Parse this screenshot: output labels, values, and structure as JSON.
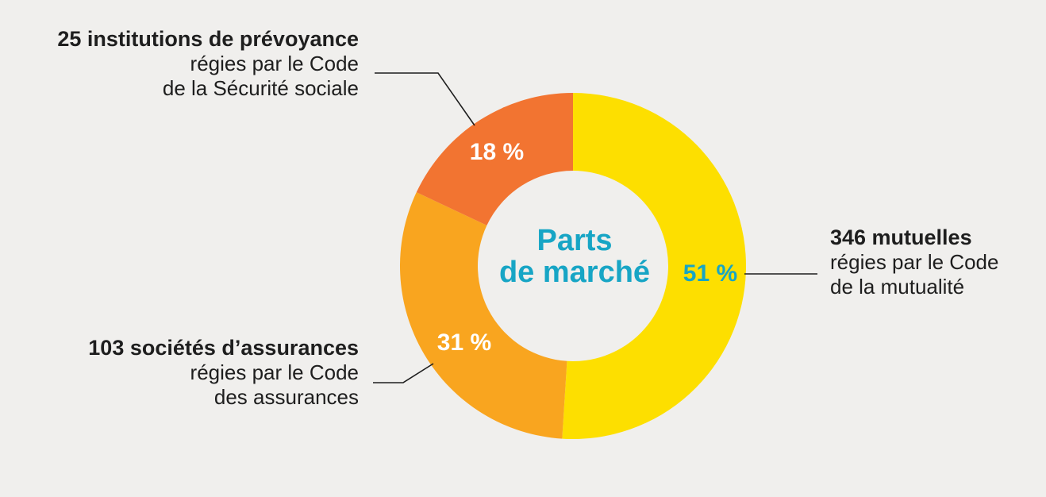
{
  "chart_data": {
    "type": "pie",
    "donut": true,
    "center_title": [
      "Parts",
      "de marché"
    ],
    "start_angle_deg": 0,
    "slices": [
      {
        "value": 51,
        "value_label": "51 %",
        "color": "#fddf00",
        "label_color": "#17a5c5",
        "label_bold": "346 mutuelles",
        "label_lines": [
          "régies par le Code",
          "de la mutualité"
        ]
      },
      {
        "value": 31,
        "value_label": "31 %",
        "color": "#f9a51f",
        "label_color": "#ffffff",
        "label_bold": "103 sociétés d’assurances",
        "label_lines": [
          "régies par le Code",
          "des assurances"
        ]
      },
      {
        "value": 18,
        "value_label": "18 %",
        "color": "#f27431",
        "label_color": "#ffffff",
        "label_bold": "25 institutions de prévoyance",
        "label_lines": [
          "régies par le Code",
          "de la Sécurité sociale"
        ]
      }
    ]
  },
  "colors": {
    "background": "#f0efed",
    "center_text": "#17a5c5",
    "leader_line": "#1e1e1e"
  }
}
